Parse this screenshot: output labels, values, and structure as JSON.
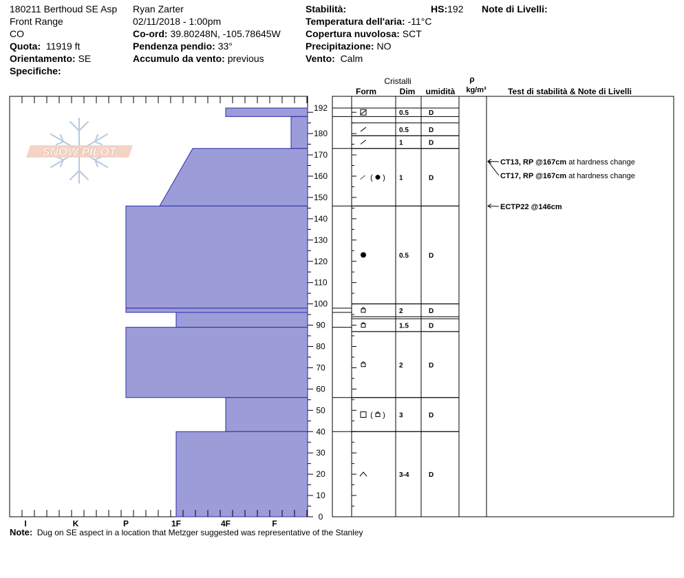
{
  "header": {
    "col1": [
      "180211 Berthoud SE Asp",
      "Front Range",
      "CO"
    ],
    "elevation": {
      "label": "Quota:",
      "value": "11919 ft"
    },
    "aspect": {
      "label": "Orientamento:",
      "value": "SE"
    },
    "specifics": {
      "label": "Specifiche:",
      "value": ""
    },
    "observer": "Ryan Zarter",
    "datetime": "02/11/2018 - 1:00pm",
    "coords": {
      "label": "Co-ord:",
      "value": "39.80248N, -105.78645W"
    },
    "slope": {
      "label": "Pendenza pendio:",
      "value": "33°"
    },
    "wind_loading": {
      "label": "Accumulo da vento:",
      "value": "previous"
    },
    "stability": {
      "label": "Stabilità:",
      "value": ""
    },
    "hs": {
      "label": "HS:",
      "value": "192"
    },
    "air_temp": {
      "label": "Temperatura dell'aria:",
      "value": "-11°C"
    },
    "sky": {
      "label": "Copertura nuvolosa:",
      "value": "SCT"
    },
    "precip": {
      "label": "Precipitazione:",
      "value": "NO"
    },
    "wind": {
      "label": "Vento:",
      "value": "Calm"
    },
    "layer_notes": {
      "label": "Note di Livelli:",
      "value": ""
    }
  },
  "logo_text": "SNOW PILOT",
  "columns": {
    "crystals": "Cristalli",
    "form": "Form",
    "size": "Dim",
    "moisture": "umidità",
    "rho": "ρ",
    "density_unit": "kg/m³",
    "tests": "Test di stabilità & Note di Livelli"
  },
  "note": {
    "label": "Note:",
    "value": "Dug on SE aspect in a location that Metzger suggested was representative of the Stanley"
  },
  "colors": {
    "hardness_fill": "#9c9cd8",
    "hardness_stroke": "#2a2aa8",
    "logo": "#f2c8b8"
  },
  "chart_data": {
    "type": "snow-profile",
    "y_axis": {
      "label": "",
      "range": [
        0,
        192
      ],
      "ticks": [
        0,
        10,
        20,
        30,
        40,
        50,
        60,
        70,
        80,
        90,
        100,
        110,
        120,
        130,
        140,
        150,
        160,
        170,
        180,
        192
      ]
    },
    "hardness_scale": [
      "I",
      "K",
      "P",
      "1F",
      "4F",
      "F"
    ],
    "hardness_layers": [
      {
        "bottom": 188,
        "top": 192,
        "hardness_bottom": "4F",
        "hardness_top": "4F"
      },
      {
        "bottom": 173,
        "top": 188,
        "hardness_bottom": "F-",
        "hardness_top": "F-"
      },
      {
        "bottom": 146,
        "top": 173,
        "hardness_bottom": "1F+",
        "hardness_top": "1F-"
      },
      {
        "bottom": 98,
        "top": 146,
        "hardness_bottom": "P",
        "hardness_top": "P"
      },
      {
        "bottom": 96,
        "top": 98,
        "hardness_bottom": "P",
        "hardness_top": "P"
      },
      {
        "bottom": 89,
        "top": 96,
        "hardness_bottom": "1F",
        "hardness_top": "1F"
      },
      {
        "bottom": 56,
        "top": 89,
        "hardness_bottom": "P",
        "hardness_top": "P"
      },
      {
        "bottom": 40,
        "top": 56,
        "hardness_bottom": "4F",
        "hardness_top": "4F"
      },
      {
        "bottom": 0,
        "top": 40,
        "hardness_bottom": "1F",
        "hardness_top": "1F"
      }
    ],
    "crystal_rows": [
      {
        "bottom": 188,
        "top": 192,
        "form": "boxslash",
        "size": "0.5",
        "moisture": "D"
      },
      {
        "bottom": 179,
        "top": 185,
        "form": "slash",
        "size": "0.5",
        "moisture": "D"
      },
      {
        "bottom": 173,
        "top": 179,
        "form": "slash",
        "size": "1",
        "moisture": "D"
      },
      {
        "bottom": 146,
        "top": 173,
        "form": "slashdash-dot",
        "size": "1",
        "moisture": "D"
      },
      {
        "bottom": 100,
        "top": 146,
        "form": "dot",
        "size": "0.5",
        "moisture": "D"
      },
      {
        "bottom": 94,
        "top": 100,
        "form": "fac",
        "size": "2",
        "moisture": "D"
      },
      {
        "bottom": 87,
        "top": 93,
        "form": "fac",
        "size": "1.5",
        "moisture": "D"
      },
      {
        "bottom": 56,
        "top": 87,
        "form": "fac",
        "size": "2",
        "moisture": "D"
      },
      {
        "bottom": 40,
        "top": 56,
        "form": "square-fac",
        "size": "3",
        "moisture": "D"
      },
      {
        "bottom": 0,
        "top": 40,
        "form": "cup",
        "size": "3-4",
        "moisture": "D"
      }
    ],
    "tests": [
      {
        "depth": 167,
        "code": "CT13, RP @167cm",
        "note": "at hardness change"
      },
      {
        "depth": 167,
        "code": "CT17, RP @167cm",
        "note": "at hardness change"
      },
      {
        "depth": 146,
        "code": "ECTP22 @146cm",
        "note": ""
      }
    ]
  }
}
